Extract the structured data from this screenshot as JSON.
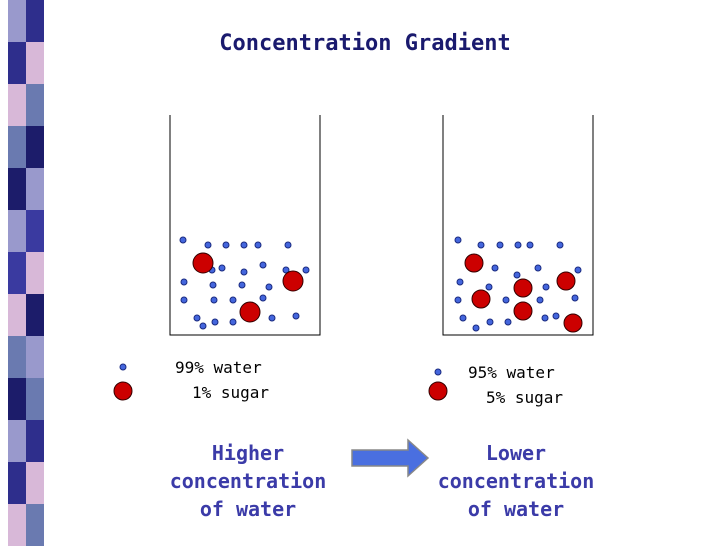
{
  "title": "Concentration Gradient",
  "beakers": [
    {
      "legend": {
        "water": "99% water",
        "sugar": "1% sugar"
      },
      "caption": [
        "Higher",
        "concentration",
        "of water"
      ]
    },
    {
      "legend": {
        "water": "95% water",
        "sugar": "5% sugar"
      },
      "caption": [
        "Lower",
        "concentration",
        "of water"
      ]
    }
  ]
}
